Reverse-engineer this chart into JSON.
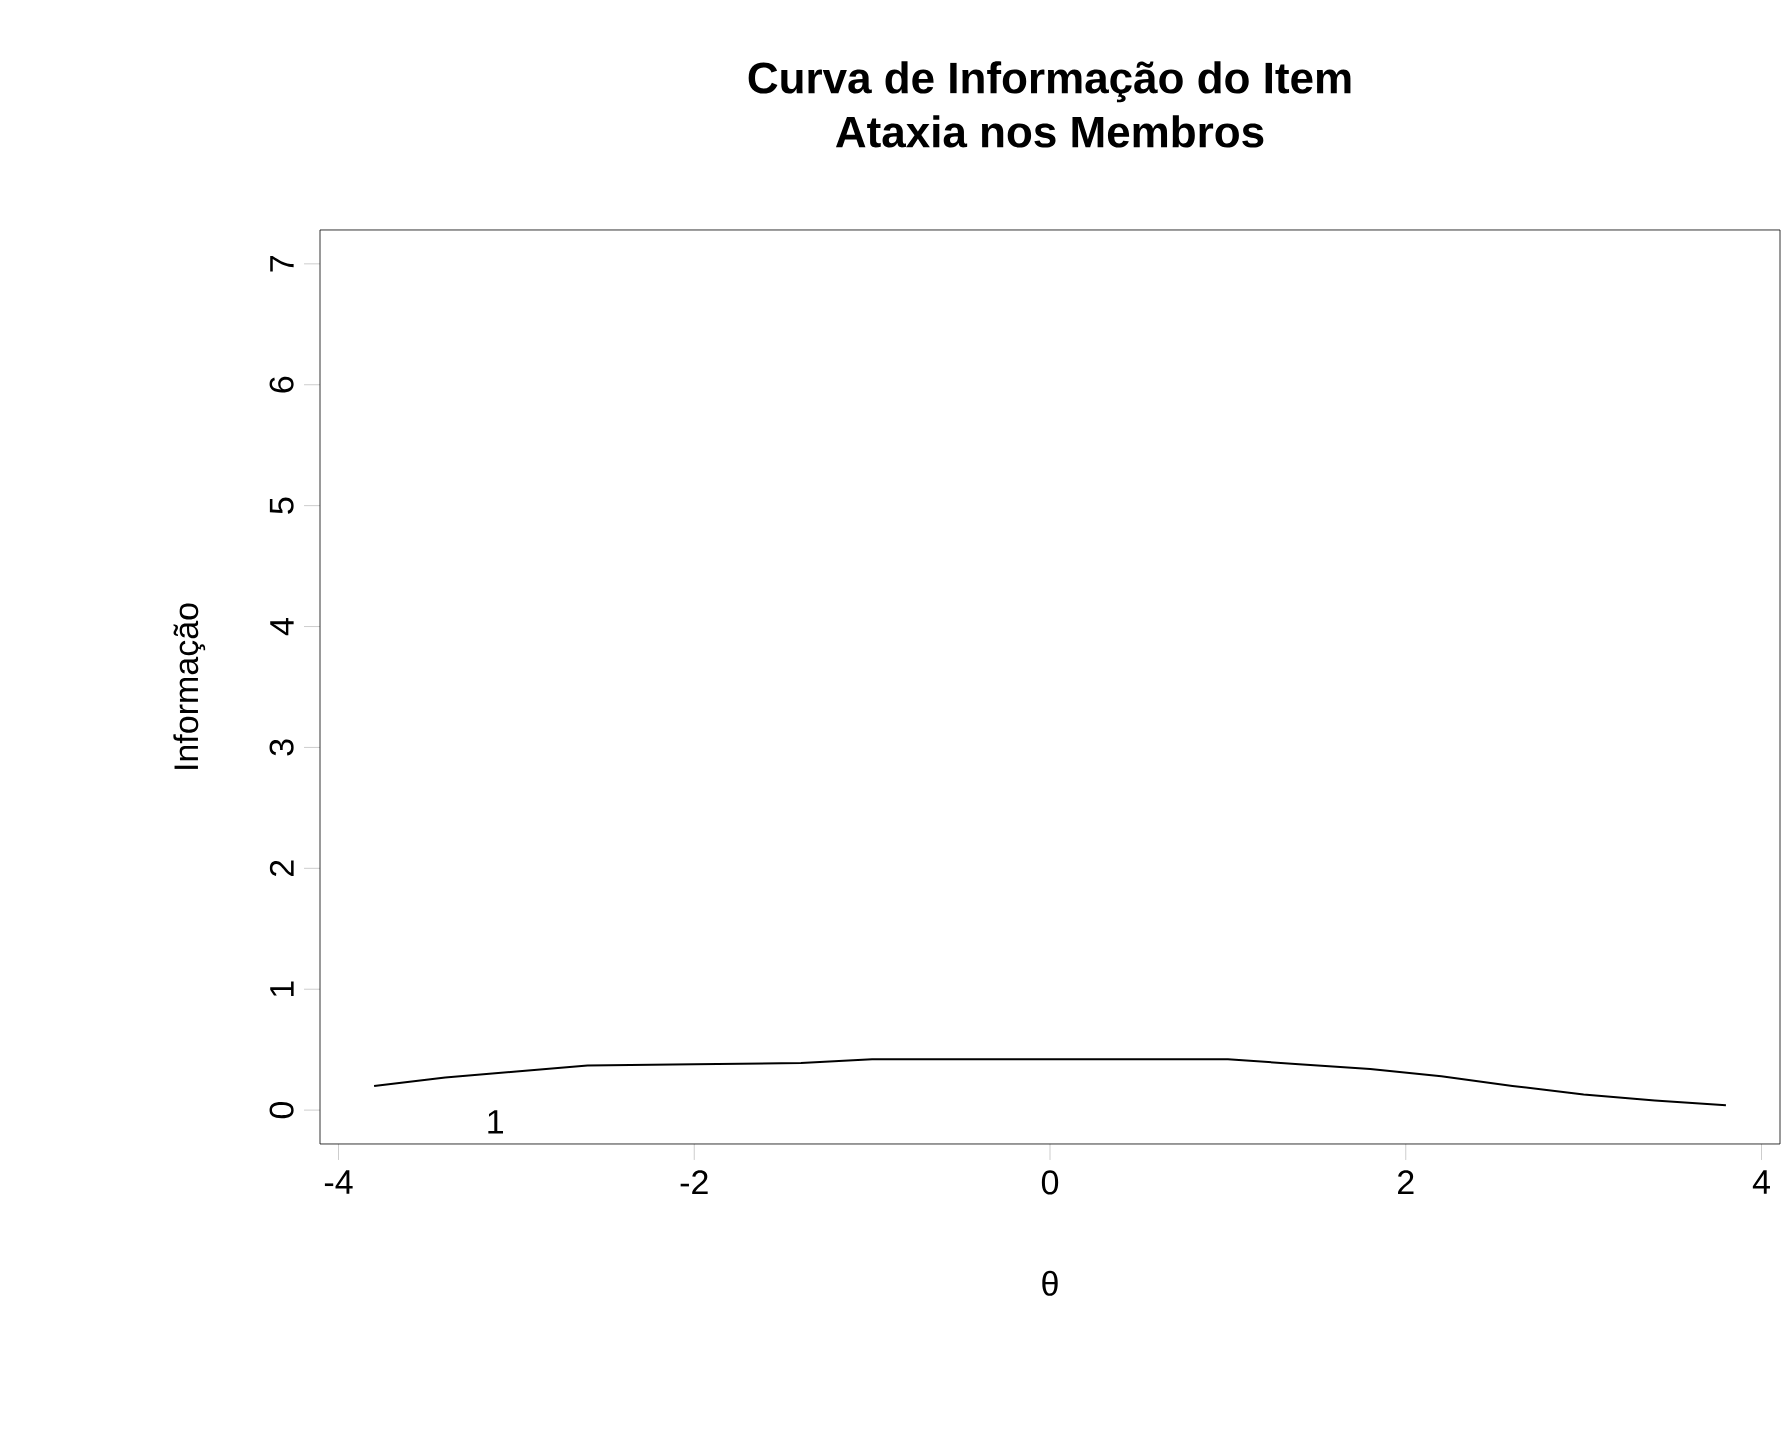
{
  "chart_data": {
    "type": "line",
    "title": "Curva de Informação do Item",
    "subtitle": "Ataxia nos Membros",
    "xlabel": "θ",
    "ylabel": "Informação",
    "x": [
      -3.8,
      -3.4,
      -3,
      -2.6,
      -2,
      -1.4,
      -1,
      -0.5,
      0,
      0.5,
      1,
      1.4,
      1.8,
      2.2,
      2.6,
      3,
      3.4,
      3.8
    ],
    "series": [
      {
        "color": "#000000",
        "values": [
          0.2,
          0.27,
          0.32,
          0.37,
          0.38,
          0.39,
          0.42,
          0.42,
          0.42,
          0.42,
          0.42,
          0.38,
          0.34,
          0.28,
          0.2,
          0.13,
          0.08,
          0.04
        ]
      }
    ],
    "annotations": [
      "1"
    ],
    "xlim": [
      -4.104,
      4.104
    ],
    "ylim": [
      -0.28,
      7.28
    ],
    "xticks": [
      -4,
      -2,
      0,
      2,
      4
    ],
    "yticks": [
      0,
      1,
      2,
      3,
      4,
      5,
      6,
      7
    ],
    "grid": false,
    "marker": "none",
    "line_style": "solid"
  }
}
